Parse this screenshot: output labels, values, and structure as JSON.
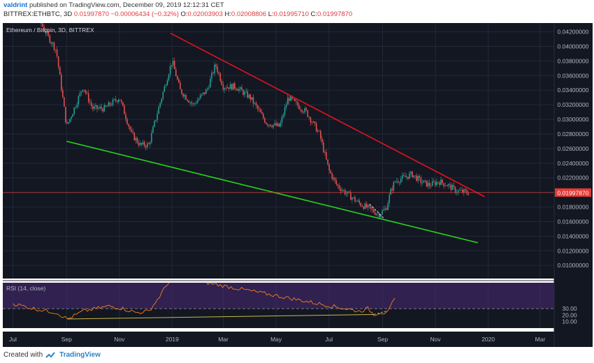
{
  "header": {
    "author": "valdrint",
    "published_text": "published on TradingView.com, December 09, 2019 12:12:31 CET",
    "symbol": "BITTREX:ETHBTC, 3D",
    "price": "0.01997870",
    "change": "−0.00006434 (−0.32%)",
    "o_label": "O:",
    "o_value": "0.02003903",
    "h_label": "H:",
    "h_value": "0.02008806",
    "l_label": "L:",
    "l_value": "0.01995710",
    "c_label": "C:",
    "c_value": "0.01997870"
  },
  "footer": {
    "created_with": "Created with",
    "brand": "TradingView"
  },
  "chart_data": {
    "type": "line",
    "title": "Ethereum / Bitcoin, 3D, BITTREX",
    "x_tick_labels": [
      "Jul",
      "Sep",
      "Nov",
      "2019",
      "Mar",
      "May",
      "Jul",
      "Sep",
      "Nov",
      "2020",
      "Mar"
    ],
    "price_axis": {
      "ylim": [
        0.0082,
        0.0432
      ],
      "ticks": [
        "0.04200000",
        "0.04000000",
        "0.03800000",
        "0.03600000",
        "0.03400000",
        "0.03200000",
        "0.03000000",
        "0.02800000",
        "0.02600000",
        "0.02400000",
        "0.02200000",
        "0.02000000",
        "0.01800000",
        "0.01600000",
        "0.01400000",
        "0.01200000",
        "0.01000000"
      ],
      "tick_values": [
        0.042,
        0.04,
        0.038,
        0.036,
        0.034,
        0.032,
        0.03,
        0.028,
        0.026,
        0.024,
        0.022,
        0.02,
        0.018,
        0.016,
        0.014,
        0.012,
        0.01
      ]
    },
    "last_price_label": "0.01997870",
    "last_price": 0.0199787,
    "price_series": {
      "name": "ETHBTC",
      "x": [
        "2018-06-29",
        "2018-07-15",
        "2018-08-01",
        "2018-08-10",
        "2018-08-20",
        "2018-09-01",
        "2018-09-08",
        "2018-09-20",
        "2018-10-01",
        "2018-10-15",
        "2018-11-01",
        "2018-11-15",
        "2018-11-25",
        "2018-12-05",
        "2018-12-15",
        "2018-12-28",
        "2019-01-01",
        "2019-01-10",
        "2019-01-25",
        "2019-02-10",
        "2019-02-20",
        "2019-03-01",
        "2019-03-15",
        "2019-04-01",
        "2019-04-20",
        "2019-05-05",
        "2019-05-15",
        "2019-05-25",
        "2019-06-05",
        "2019-06-20",
        "2019-07-01",
        "2019-07-10",
        "2019-07-20",
        "2019-08-05",
        "2019-08-20",
        "2019-08-28",
        "2019-09-05",
        "2019-09-10",
        "2019-09-15",
        "2019-09-25",
        "2019-10-05",
        "2019-10-15",
        "2019-10-25",
        "2019-11-05",
        "2019-11-15",
        "2019-11-25",
        "2019-12-09"
      ],
      "y": [
        0.0455,
        0.0448,
        0.0435,
        0.0415,
        0.0395,
        0.029,
        0.031,
        0.0345,
        0.0315,
        0.0315,
        0.033,
        0.028,
        0.0265,
        0.0265,
        0.031,
        0.0365,
        0.038,
        0.034,
        0.032,
        0.034,
        0.0375,
        0.0345,
        0.0345,
        0.033,
        0.0295,
        0.029,
        0.033,
        0.032,
        0.031,
        0.028,
        0.023,
        0.021,
        0.02,
        0.0185,
        0.0175,
        0.017,
        0.0178,
        0.02,
        0.0215,
        0.022,
        0.0225,
        0.0215,
        0.021,
        0.0215,
        0.021,
        0.0202,
        0.0199787
      ]
    },
    "upper_trendline": {
      "x": [
        "2018-12-30",
        "2019-12-28"
      ],
      "y": [
        0.0418,
        0.0194
      ]
    },
    "lower_trendline": {
      "x": [
        "2018-09-01",
        "2019-12-20"
      ],
      "y": [
        0.027,
        0.0131
      ]
    },
    "price_divergence_line": {
      "x": [
        "2019-08-17",
        "2019-09-02"
      ],
      "y": [
        0.0184,
        0.0165
      ]
    },
    "rsi": {
      "label": "RSI (14, close)",
      "ylim": [
        0,
        100
      ],
      "band": [
        30,
        70
      ],
      "tick_labels": [
        "30.00",
        "20.00",
        "10.00"
      ],
      "tick_values": [
        30,
        20,
        10
      ],
      "x": [
        "2018-07-01",
        "2018-07-25",
        "2018-08-20",
        "2018-09-02",
        "2018-09-20",
        "2018-10-05",
        "2018-10-20",
        "2018-11-05",
        "2018-11-20",
        "2018-12-05",
        "2018-12-15",
        "2019-01-01",
        "2019-08-05",
        "2019-08-15",
        "2019-08-22",
        "2019-08-28",
        "2019-09-03",
        "2019-09-10",
        "2019-09-15"
      ],
      "y": [
        38,
        30,
        24,
        14,
        26,
        30,
        34,
        30,
        24,
        26,
        44,
        80,
        26,
        30,
        21,
        24,
        24,
        32,
        46
      ],
      "support_line": {
        "x": [
          "2018-09-02",
          "2019-08-22"
        ],
        "y": [
          14,
          21
        ]
      },
      "divergence_line": {
        "x": [
          "2019-08-22",
          "2019-09-05"
        ],
        "y": [
          21,
          26
        ]
      }
    },
    "colors": {
      "background": "#131722",
      "up": "#26a69a",
      "down": "#ef5350",
      "upper_trend": "#e0141e",
      "lower_trend": "#27d61c",
      "rsi_line": "#f57f17",
      "rsi_support": "#c9b84b",
      "rsi_band": "#4a2a77",
      "last_price": "#e53935"
    }
  }
}
